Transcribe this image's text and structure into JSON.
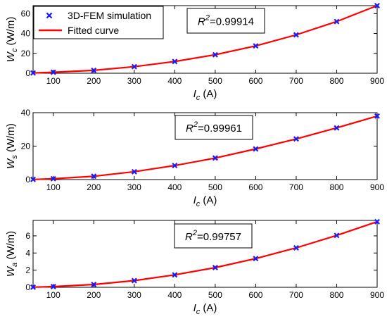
{
  "legend": {
    "marker_label": "3D-FEM simulation",
    "line_label": "Fitted curve",
    "placement": "top-left of first panel"
  },
  "colors": {
    "marker": "#1a1aff",
    "line": "#ff0000",
    "axes": "#000000",
    "background": "#ffffff"
  },
  "chart_data": [
    {
      "type": "scatter+line",
      "xlabel_main": "I",
      "xlabel_sub": "c",
      "xlabel_unit": "(A)",
      "ylabel_main": "W",
      "ylabel_sub": "c",
      "ylabel_unit": "(W/m)",
      "annotation": {
        "main": "R",
        "sup": "2",
        "value": "=0.99914"
      },
      "xlim": [
        50,
        900
      ],
      "ylim": [
        0,
        68
      ],
      "xticks": [
        100,
        200,
        300,
        400,
        500,
        600,
        700,
        800,
        900
      ],
      "yticks": [
        0,
        20,
        40,
        60
      ],
      "grid": false,
      "x": [
        50,
        100,
        200,
        300,
        400,
        500,
        600,
        700,
        800,
        900
      ],
      "y": [
        0.3,
        1.0,
        2.9,
        6.6,
        11.8,
        18.6,
        27.5,
        38.6,
        52.0,
        68.0
      ]
    },
    {
      "type": "scatter+line",
      "xlabel_main": "I",
      "xlabel_sub": "c",
      "xlabel_unit": "(A)",
      "ylabel_main": "W",
      "ylabel_sub": "s",
      "ylabel_unit": "(W/m)",
      "annotation": {
        "main": "R",
        "sup": "2",
        "value": "=0.99961"
      },
      "xlim": [
        50,
        900
      ],
      "ylim": [
        0,
        40
      ],
      "xticks": [
        100,
        200,
        300,
        400,
        500,
        600,
        700,
        800,
        900
      ],
      "yticks": [
        0,
        20,
        40
      ],
      "grid": false,
      "x": [
        50,
        100,
        200,
        300,
        400,
        500,
        600,
        700,
        800,
        900
      ],
      "y": [
        0.1,
        0.5,
        2.0,
        4.7,
        8.4,
        12.9,
        18.3,
        24.3,
        30.9,
        38.0
      ]
    },
    {
      "type": "scatter+line",
      "xlabel_main": "I",
      "xlabel_sub": "c",
      "xlabel_unit": "(A)",
      "ylabel_main": "W",
      "ylabel_sub": "a",
      "ylabel_unit": "(W/m)",
      "annotation": {
        "main": "R",
        "sup": "2",
        "value": "=0.99757"
      },
      "xlim": [
        50,
        900
      ],
      "ylim": [
        0,
        7.8
      ],
      "xticks": [
        100,
        200,
        300,
        400,
        500,
        600,
        700,
        800,
        900
      ],
      "yticks": [
        0,
        2,
        4,
        6
      ],
      "grid": false,
      "x": [
        50,
        100,
        200,
        300,
        400,
        500,
        600,
        700,
        800,
        900
      ],
      "y": [
        0.02,
        0.08,
        0.33,
        0.78,
        1.45,
        2.3,
        3.35,
        4.6,
        6.05,
        7.65
      ]
    }
  ]
}
